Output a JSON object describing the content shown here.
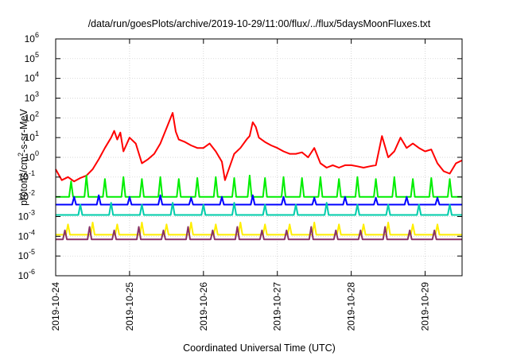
{
  "chart_data": {
    "type": "line",
    "title": "/data/run/goesPlots/archive/2019-10-29/11:00/flux/../flux/5daysMoonFluxes.txt",
    "xlabel": "Coordinated Universal Time (UTC)",
    "ylabel": {
      "prefix": "protons/cm",
      "superscript": "2",
      "suffix": "-s-sr-MeV"
    },
    "yscale": "log",
    "ylim": [
      "1e-6",
      "1e6"
    ],
    "xlim": [
      "2019-10-24",
      "2019-10-29 12:00"
    ],
    "x_ticks": [
      "2019-10-24",
      "2019-10-25",
      "2019-10-26",
      "2019-10-27",
      "2019-10-28",
      "2019-10-29"
    ],
    "y_ticks": [
      {
        "exp": -6,
        "label_base": "10",
        "label_exp": "-6"
      },
      {
        "exp": -5,
        "label_base": "10",
        "label_exp": "-5"
      },
      {
        "exp": -4,
        "label_base": "10",
        "label_exp": "-4"
      },
      {
        "exp": -3,
        "label_base": "10",
        "label_exp": "-3"
      },
      {
        "exp": -2,
        "label_base": "10",
        "label_exp": "-2"
      },
      {
        "exp": -1,
        "label_base": "10",
        "label_exp": "-1"
      },
      {
        "exp": 0,
        "label_base": "10",
        "label_exp": "0"
      },
      {
        "exp": 1,
        "label_base": "10",
        "label_exp": "1"
      },
      {
        "exp": 2,
        "label_base": "10",
        "label_exp": "2"
      },
      {
        "exp": 3,
        "label_base": "10",
        "label_exp": "3"
      },
      {
        "exp": 4,
        "label_base": "10",
        "label_exp": "4"
      },
      {
        "exp": 5,
        "label_base": "10",
        "label_exp": "5"
      },
      {
        "exp": 6,
        "label_base": "10",
        "label_exp": "6"
      }
    ],
    "grid": true,
    "series": [
      {
        "color": "#ff0000",
        "points": [
          [
            "2019-10-24 00:00",
            0.25
          ],
          [
            "2019-10-24 02:00",
            0.07
          ],
          [
            "2019-10-24 04:00",
            0.1
          ],
          [
            "2019-10-24 06:00",
            0.06
          ],
          [
            "2019-10-24 08:00",
            0.09
          ],
          [
            "2019-10-24 10:00",
            0.12
          ],
          [
            "2019-10-24 12:00",
            0.25
          ],
          [
            "2019-10-24 14:00",
            0.8
          ],
          [
            "2019-10-24 16:00",
            3
          ],
          [
            "2019-10-24 18:00",
            10
          ],
          [
            "2019-10-24 19:00",
            22
          ],
          [
            "2019-10-24 20:00",
            8
          ],
          [
            "2019-10-24 21:00",
            18
          ],
          [
            "2019-10-24 22:00",
            2
          ],
          [
            "2019-10-25 00:00",
            10
          ],
          [
            "2019-10-25 02:00",
            5
          ],
          [
            "2019-10-25 04:00",
            0.5
          ],
          [
            "2019-10-25 06:00",
            0.8
          ],
          [
            "2019-10-25 08:00",
            1.5
          ],
          [
            "2019-10-25 10:00",
            5
          ],
          [
            "2019-10-25 12:00",
            30
          ],
          [
            "2019-10-25 14:00",
            180
          ],
          [
            "2019-10-25 15:00",
            20
          ],
          [
            "2019-10-25 16:00",
            8
          ],
          [
            "2019-10-25 18:00",
            6
          ],
          [
            "2019-10-25 20:00",
            4
          ],
          [
            "2019-10-25 22:00",
            3
          ],
          [
            "2019-10-26 00:00",
            3
          ],
          [
            "2019-10-26 02:00",
            5
          ],
          [
            "2019-10-26 04:00",
            2
          ],
          [
            "2019-10-26 06:00",
            0.6
          ],
          [
            "2019-10-26 07:00",
            0.07
          ],
          [
            "2019-10-26 08:00",
            0.2
          ],
          [
            "2019-10-26 10:00",
            1.5
          ],
          [
            "2019-10-26 12:00",
            3
          ],
          [
            "2019-10-26 14:00",
            8
          ],
          [
            "2019-10-26 15:00",
            12
          ],
          [
            "2019-10-26 16:00",
            60
          ],
          [
            "2019-10-26 17:00",
            35
          ],
          [
            "2019-10-26 18:00",
            10
          ],
          [
            "2019-10-26 20:00",
            6
          ],
          [
            "2019-10-26 22:00",
            4
          ],
          [
            "2019-10-27 00:00",
            3
          ],
          [
            "2019-10-27 02:00",
            2
          ],
          [
            "2019-10-27 04:00",
            1.5
          ],
          [
            "2019-10-27 06:00",
            1.5
          ],
          [
            "2019-10-27 08:00",
            1.8
          ],
          [
            "2019-10-27 10:00",
            1
          ],
          [
            "2019-10-27 12:00",
            3
          ],
          [
            "2019-10-27 14:00",
            0.5
          ],
          [
            "2019-10-27 16:00",
            0.3
          ],
          [
            "2019-10-27 18:00",
            0.4
          ],
          [
            "2019-10-27 20:00",
            0.3
          ],
          [
            "2019-10-27 22:00",
            0.4
          ],
          [
            "2019-10-28 00:00",
            0.4
          ],
          [
            "2019-10-28 02:00",
            0.35
          ],
          [
            "2019-10-28 04:00",
            0.3
          ],
          [
            "2019-10-28 06:00",
            0.35
          ],
          [
            "2019-10-28 08:00",
            0.4
          ],
          [
            "2019-10-28 10:00",
            12
          ],
          [
            "2019-10-28 12:00",
            1
          ],
          [
            "2019-10-28 14:00",
            2
          ],
          [
            "2019-10-28 16:00",
            10
          ],
          [
            "2019-10-28 18:00",
            3
          ],
          [
            "2019-10-28 20:00",
            5
          ],
          [
            "2019-10-28 22:00",
            3
          ],
          [
            "2019-10-29 00:00",
            2
          ],
          [
            "2019-10-29 02:00",
            2.5
          ],
          [
            "2019-10-29 04:00",
            0.5
          ],
          [
            "2019-10-29 06:00",
            0.2
          ],
          [
            "2019-10-29 08:00",
            0.15
          ],
          [
            "2019-10-29 10:00",
            0.5
          ],
          [
            "2019-10-29 12:00",
            0.7
          ]
        ]
      },
      {
        "color": "#00ee00",
        "base": 0.01,
        "spike_top": 0.1,
        "spikes": [
          [
            "2019-10-24 05:00",
            0.06
          ],
          [
            "2019-10-24 10:00",
            0.12
          ],
          [
            "2019-10-24 16:00",
            0.08
          ],
          [
            "2019-10-24 22:00",
            0.1
          ],
          [
            "2019-10-25 04:00",
            0.08
          ],
          [
            "2019-10-25 10:00",
            0.1
          ],
          [
            "2019-10-25 16:00",
            0.08
          ],
          [
            "2019-10-25 22:00",
            0.09
          ],
          [
            "2019-10-26 04:00",
            0.1
          ],
          [
            "2019-10-26 10:00",
            0.09
          ],
          [
            "2019-10-26 15:00",
            0.12
          ],
          [
            "2019-10-26 20:00",
            0.09
          ],
          [
            "2019-10-27 02:00",
            0.1
          ],
          [
            "2019-10-27 08:00",
            0.09
          ],
          [
            "2019-10-27 14:00",
            0.1
          ],
          [
            "2019-10-27 20:00",
            0.08
          ],
          [
            "2019-10-28 02:00",
            0.1
          ],
          [
            "2019-10-28 08:00",
            0.08
          ],
          [
            "2019-10-28 14:00",
            0.1
          ],
          [
            "2019-10-28 20:00",
            0.08
          ],
          [
            "2019-10-29 02:00",
            0.09
          ],
          [
            "2019-10-29 08:00",
            0.08
          ]
        ]
      },
      {
        "color": "#0000ff",
        "base": 0.004,
        "spike_top": 0.02,
        "spikes": [
          [
            "2019-10-24 06:00",
            0.01
          ],
          [
            "2019-10-24 14:00",
            0.012
          ],
          [
            "2019-10-25 00:00",
            0.01
          ],
          [
            "2019-10-25 10:00",
            0.012
          ],
          [
            "2019-10-25 20:00",
            0.009
          ],
          [
            "2019-10-26 06:00",
            0.01
          ],
          [
            "2019-10-26 16:00",
            0.012
          ],
          [
            "2019-10-27 02:00",
            0.01
          ],
          [
            "2019-10-27 12:00",
            0.009
          ],
          [
            "2019-10-27 22:00",
            0.01
          ],
          [
            "2019-10-28 08:00",
            0.009
          ],
          [
            "2019-10-28 18:00",
            0.01
          ],
          [
            "2019-10-29 04:00",
            0.009
          ]
        ]
      },
      {
        "color": "#00ccaa",
        "base": 0.0012,
        "spike_top": 0.005,
        "spikes": [
          [
            "2019-10-24 08:00",
            0.004
          ],
          [
            "2019-10-24 18:00",
            0.005
          ],
          [
            "2019-10-25 04:00",
            0.004
          ],
          [
            "2019-10-25 14:00",
            0.005
          ],
          [
            "2019-10-26 00:00",
            0.004
          ],
          [
            "2019-10-26 10:00",
            0.005
          ],
          [
            "2019-10-26 20:00",
            0.004
          ],
          [
            "2019-10-27 06:00",
            0.004
          ],
          [
            "2019-10-27 16:00",
            0.005
          ],
          [
            "2019-10-28 02:00",
            0.004
          ],
          [
            "2019-10-28 12:00",
            0.004
          ],
          [
            "2019-10-28 22:00",
            0.004
          ],
          [
            "2019-10-29 08:00",
            0.004
          ]
        ]
      },
      {
        "color": "#ffee00",
        "base": 0.00012,
        "spike_top": 0.0005,
        "spikes": [
          [
            "2019-10-24 04:00",
            0.0004
          ],
          [
            "2019-10-24 12:00",
            0.0005
          ],
          [
            "2019-10-24 20:00",
            0.0004
          ],
          [
            "2019-10-25 04:00",
            0.0005
          ],
          [
            "2019-10-25 12:00",
            0.0004
          ],
          [
            "2019-10-25 20:00",
            0.0005
          ],
          [
            "2019-10-26 04:00",
            0.0004
          ],
          [
            "2019-10-26 12:00",
            0.0005
          ],
          [
            "2019-10-26 20:00",
            0.0004
          ],
          [
            "2019-10-27 04:00",
            0.0004
          ],
          [
            "2019-10-27 12:00",
            0.0005
          ],
          [
            "2019-10-27 20:00",
            0.0004
          ],
          [
            "2019-10-28 04:00",
            0.0004
          ],
          [
            "2019-10-28 12:00",
            0.0005
          ],
          [
            "2019-10-28 20:00",
            0.0004
          ],
          [
            "2019-10-29 04:00",
            0.0004
          ]
        ]
      },
      {
        "color": "#883366",
        "base": 7e-05,
        "spike_top": 0.0003,
        "spikes": [
          [
            "2019-10-24 03:00",
            0.0002
          ],
          [
            "2019-10-24 11:00",
            0.0003
          ],
          [
            "2019-10-24 19:00",
            0.0002
          ],
          [
            "2019-10-25 03:00",
            0.0003
          ],
          [
            "2019-10-25 11:00",
            0.0002
          ],
          [
            "2019-10-25 19:00",
            0.0003
          ],
          [
            "2019-10-26 03:00",
            0.0002
          ],
          [
            "2019-10-26 11:00",
            0.0003
          ],
          [
            "2019-10-26 19:00",
            0.0002
          ],
          [
            "2019-10-27 03:00",
            0.0002
          ],
          [
            "2019-10-27 11:00",
            0.0003
          ],
          [
            "2019-10-27 19:00",
            0.0002
          ],
          [
            "2019-10-28 03:00",
            0.0002
          ],
          [
            "2019-10-28 11:00",
            0.0003
          ],
          [
            "2019-10-28 19:00",
            0.0002
          ],
          [
            "2019-10-29 03:00",
            0.0002
          ]
        ]
      }
    ]
  }
}
